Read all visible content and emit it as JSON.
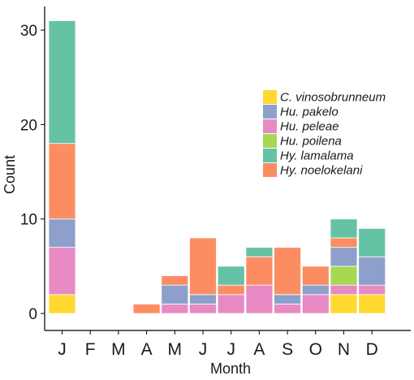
{
  "chart_data": {
    "type": "bar",
    "stacked": true,
    "xlabel": "Month",
    "ylabel": "Count",
    "categories": [
      "J",
      "F",
      "M",
      "A",
      "M",
      "J",
      "J",
      "A",
      "S",
      "O",
      "N",
      "D"
    ],
    "ylim": [
      -1.8,
      32.5
    ],
    "yticks": [
      0,
      10,
      20,
      30
    ],
    "grid": false,
    "legend_position": "right",
    "series": [
      {
        "name": "C. vinosobrunneum",
        "color": "#FFD92F",
        "values": [
          2,
          0,
          0,
          0,
          0,
          0,
          0,
          0,
          0,
          0,
          2,
          2
        ]
      },
      {
        "name": "Hu. peleae",
        "color": "#E78AC3",
        "values": [
          5,
          0,
          0,
          0,
          1,
          1,
          2,
          3,
          1,
          2,
          1,
          1
        ]
      },
      {
        "name": "Hu. poilena",
        "color": "#A6D854",
        "values": [
          0,
          0,
          0,
          0,
          0,
          0,
          0,
          0,
          0,
          0,
          2,
          0
        ]
      },
      {
        "name": "Hu. pakelo",
        "color": "#8DA0CB",
        "values": [
          3,
          0,
          0,
          0,
          2,
          1,
          0,
          0,
          1,
          1,
          2,
          3
        ]
      },
      {
        "name": "Hy. noelokelani",
        "color": "#FC8D62",
        "values": [
          8,
          0,
          0,
          1,
          1,
          6,
          1,
          3,
          5,
          2,
          1,
          0
        ]
      },
      {
        "name": "Hy. lamalama",
        "color": "#66C2A5",
        "values": [
          13,
          0,
          0,
          0,
          0,
          0,
          2,
          1,
          0,
          0,
          2,
          3
        ]
      }
    ],
    "legend_order": [
      "C. vinosobrunneum",
      "Hu. pakelo",
      "Hu. peleae",
      "Hu. poilena",
      "Hy. lamalama",
      "Hy. noelokelani"
    ]
  }
}
